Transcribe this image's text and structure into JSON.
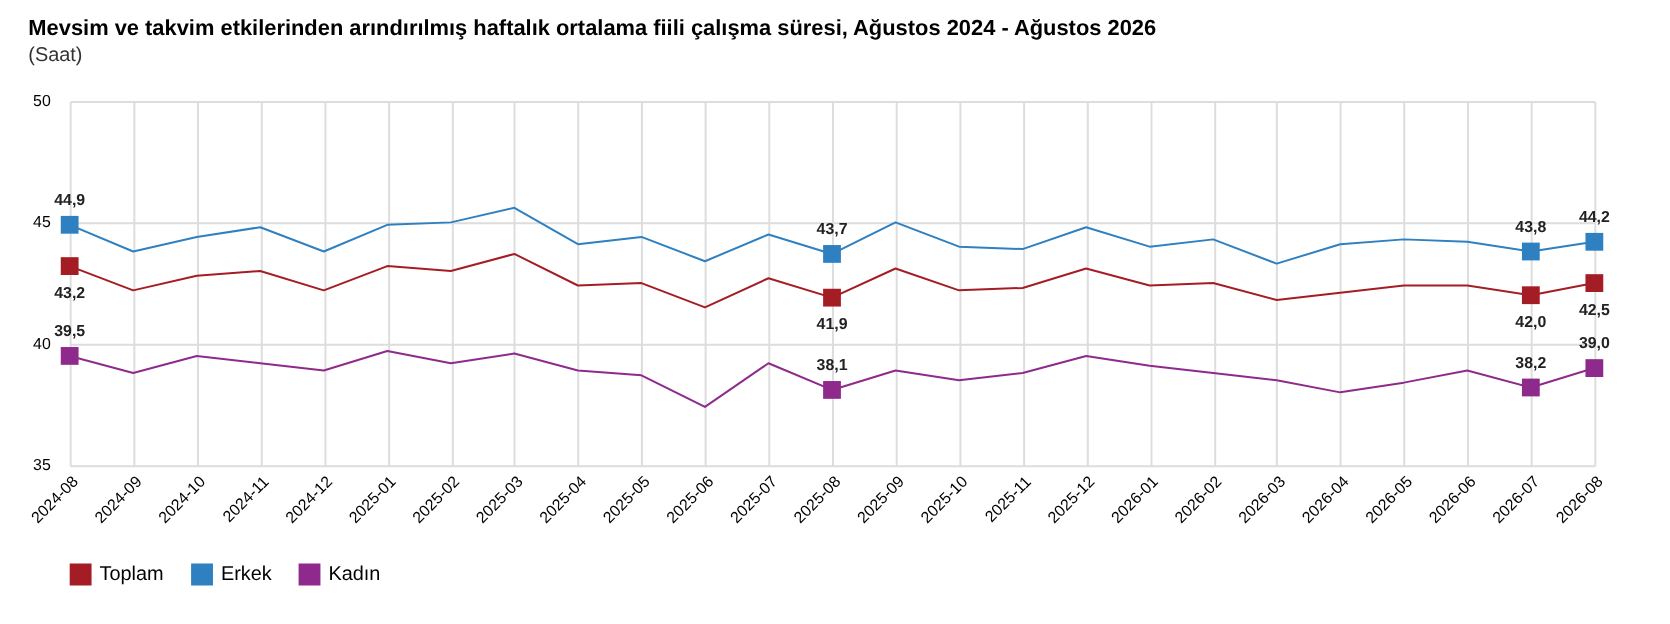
{
  "chart_data": {
    "type": "line",
    "title": "Mevsim ve takvim etkilerinden arındırılmış haftalık ortalama fiili çalışma süresi, Ağustos 2024 - Ağustos 2026",
    "subtitle": "(Saat)",
    "categories": [
      "2024-08",
      "2024-09",
      "2024-10",
      "2024-11",
      "2024-12",
      "2025-01",
      "2025-02",
      "2025-03",
      "2025-04",
      "2025-05",
      "2025-06",
      "2025-07",
      "2025-08",
      "2025-09",
      "2025-10",
      "2025-11",
      "2025-12",
      "2026-01",
      "2026-02",
      "2026-03",
      "2026-04",
      "2026-05",
      "2026-06",
      "2026-07",
      "2026-08"
    ],
    "series": [
      {
        "name": "Toplam",
        "color": "#a51d24",
        "values": [
          43.2,
          42.2,
          42.8,
          43.0,
          42.2,
          43.2,
          43.0,
          43.7,
          42.4,
          42.5,
          41.5,
          42.7,
          41.9,
          43.1,
          42.2,
          42.3,
          43.1,
          42.4,
          42.5,
          41.8,
          42.1,
          42.4,
          42.4,
          42.0,
          42.5
        ],
        "value_labels": [
          "43,2",
          null,
          null,
          null,
          null,
          null,
          null,
          null,
          null,
          null,
          null,
          null,
          "41,9",
          null,
          null,
          null,
          null,
          null,
          null,
          null,
          null,
          null,
          null,
          "42,0",
          "42,5"
        ]
      },
      {
        "name": "Erkek",
        "color": "#2f80c1",
        "values": [
          44.9,
          43.8,
          44.4,
          44.8,
          43.8,
          44.9,
          45.0,
          45.6,
          44.1,
          44.4,
          43.4,
          44.5,
          43.7,
          45.0,
          44.0,
          43.9,
          44.8,
          44.0,
          44.3,
          43.3,
          44.1,
          44.3,
          44.2,
          43.8,
          44.2
        ],
        "value_labels": [
          "44,9",
          null,
          null,
          null,
          null,
          null,
          null,
          null,
          null,
          null,
          null,
          null,
          "43,7",
          null,
          null,
          null,
          null,
          null,
          null,
          null,
          null,
          null,
          null,
          "43,8",
          "44,2"
        ]
      },
      {
        "name": "Kadın",
        "color": "#8e2a8c",
        "values": [
          39.5,
          38.8,
          39.5,
          39.2,
          38.9,
          39.7,
          39.2,
          39.6,
          38.9,
          38.7,
          37.4,
          39.2,
          38.1,
          38.9,
          38.5,
          38.8,
          39.5,
          39.1,
          38.8,
          38.5,
          38.0,
          38.4,
          38.9,
          38.2,
          39.0
        ],
        "value_labels": [
          "39,5",
          null,
          null,
          null,
          null,
          null,
          null,
          null,
          null,
          null,
          null,
          null,
          "38,1",
          null,
          null,
          null,
          null,
          null,
          null,
          null,
          null,
          null,
          null,
          "38,2",
          "39,0"
        ]
      }
    ],
    "ylim": [
      35,
      50
    ],
    "yticks": [
      35,
      40,
      45,
      50
    ],
    "grid": true,
    "legend": "bottom",
    "line_style": "solid"
  }
}
